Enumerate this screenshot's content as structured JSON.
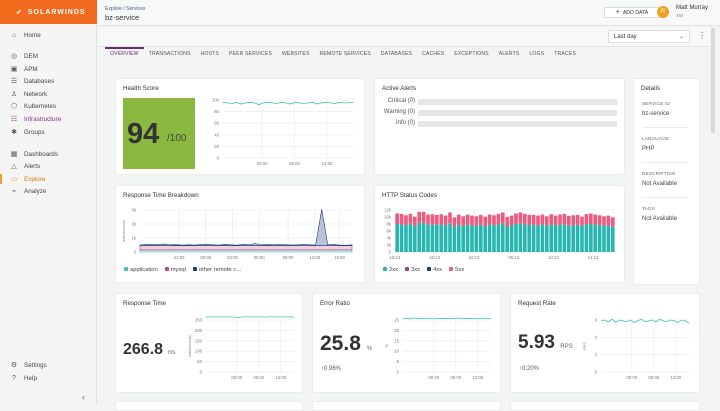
{
  "brand": {
    "name": "SOLARWINDS",
    "color": "#f26a1b"
  },
  "sidebar": {
    "items": [
      {
        "label": "Home",
        "icon": "home-icon"
      },
      {
        "label": "DEM",
        "icon": "dem-icon"
      },
      {
        "label": "APM",
        "icon": "apm-icon"
      },
      {
        "label": "Databases",
        "icon": "database-icon"
      },
      {
        "label": "Network",
        "icon": "network-icon"
      },
      {
        "label": "Kubernetes",
        "icon": "kubernetes-icon"
      },
      {
        "label": "Infrastructure",
        "icon": "infrastructure-icon"
      },
      {
        "label": "Groups",
        "icon": "groups-icon"
      },
      {
        "label": "Dashboards",
        "icon": "dashboards-icon"
      },
      {
        "label": "Alerts",
        "icon": "alerts-icon"
      },
      {
        "label": "Explore",
        "icon": "explore-icon",
        "active": true
      },
      {
        "label": "Analyze",
        "icon": "analyze-icon"
      }
    ],
    "bottom": [
      {
        "label": "Settings",
        "icon": "gear-icon"
      },
      {
        "label": "Help",
        "icon": "help-icon"
      }
    ]
  },
  "header": {
    "breadcrumb": [
      "Explore",
      "Services"
    ],
    "separator": "/",
    "title": "bz-service",
    "add_data": "ADD DATA",
    "user": {
      "name": "Matt Murray",
      "sub": "SW",
      "initial": "R"
    }
  },
  "toolbar": {
    "time_range": "Last day"
  },
  "tabs": [
    "OVERVIEW",
    "TRANSACTIONS",
    "HOSTS",
    "PEER SERVICES",
    "WEBSITES",
    "REMOTE SERVICES",
    "DATABASES",
    "CACHES",
    "EXCEPTIONS",
    "ALERTS",
    "LOGS",
    "TRACES"
  ],
  "health": {
    "title": "Health Score",
    "score": "94",
    "max": "/100",
    "color": "#8bb93f"
  },
  "alerts": {
    "title": "Active Alerts",
    "rows": [
      "Critical (0)",
      "Warning (0)",
      "Info (0)"
    ]
  },
  "details": {
    "title": "Details",
    "fields": [
      {
        "label": "SERVICE ID",
        "value": "bz-service"
      },
      {
        "label": "LANGUAGE",
        "value": "PHP"
      },
      {
        "label": "DESCRIPTION",
        "value": "Not Available"
      },
      {
        "label": "TAGS",
        "value": "Not Available"
      }
    ]
  },
  "kpis": {
    "response_time": {
      "title": "Response Time",
      "value": "266.8",
      "unit": "ms"
    },
    "error_ratio": {
      "title": "Error Ratio",
      "value": "25.8",
      "unit": "%",
      "delta": "0.96%"
    },
    "request_rate": {
      "title": "Request Rate",
      "value": "5.93",
      "unit": "RPS",
      "delta": "0.20%"
    }
  },
  "rtb_title": "Response Time Breakdown",
  "http_title": "HTTP Status Codes",
  "chart_data": [
    {
      "id": "health",
      "type": "line",
      "ylim": [
        0,
        100
      ],
      "yticks": [
        "0",
        "20",
        "40",
        "60",
        "80",
        "100"
      ],
      "xticks": [
        "00:00",
        "06:00",
        "12:00"
      ],
      "color": "#3fc1c0",
      "values": [
        96,
        95,
        94,
        96,
        93,
        95,
        96,
        95,
        92,
        95,
        96,
        95,
        94,
        96,
        95,
        93,
        96,
        95,
        94,
        95,
        96,
        93,
        95,
        96,
        95,
        94,
        96,
        95,
        95,
        96
      ]
    },
    {
      "id": "rtb",
      "type": "area",
      "ylabel": "milliseconds",
      "ylim": [
        0,
        3000
      ],
      "yticks": [
        "0",
        "1k",
        "2k",
        "3k"
      ],
      "xticks": [
        "21:00",
        "00:00",
        "03:00",
        "06:00",
        "09:00",
        "12:00",
        "15:00"
      ],
      "series": [
        {
          "name": "application",
          "color": "#3fc1c0",
          "values": [
            150,
            150,
            150,
            150,
            150,
            150,
            150,
            150,
            150,
            150,
            150,
            150,
            150,
            150,
            150,
            150,
            150,
            150,
            150,
            150,
            150,
            150,
            150,
            150,
            150,
            150,
            150,
            150,
            150,
            150,
            150,
            150,
            150,
            150,
            150,
            150
          ]
        },
        {
          "name": "mysql",
          "color": "#c2457f",
          "values": [
            300,
            300,
            310,
            300,
            300,
            300,
            320,
            300,
            300,
            300,
            300,
            300,
            300,
            300,
            310,
            300,
            300,
            300,
            300,
            300,
            300,
            320,
            300,
            300,
            300,
            300,
            300,
            300,
            300,
            300,
            300,
            300,
            300,
            300,
            300,
            300
          ]
        },
        {
          "name": "other remote c...",
          "color": "#1d3a7a",
          "values": [
            50,
            80,
            60,
            70,
            120,
            60,
            50,
            40,
            60,
            50,
            80,
            90,
            60,
            50,
            70,
            60,
            40,
            80,
            60,
            150,
            60,
            50,
            60,
            70,
            60,
            50,
            60,
            80,
            60,
            50,
            2600,
            60,
            80,
            50,
            30,
            60
          ]
        }
      ]
    },
    {
      "id": "http",
      "type": "bar",
      "stacked": true,
      "ylim": [
        0,
        12000
      ],
      "yticks": [
        "0",
        "2k",
        "4k",
        "6k",
        "8k",
        "10k",
        "12k"
      ],
      "xticks": [
        "18:13",
        "22:13",
        "02:13",
        "06:13",
        "10:13",
        "14:13"
      ],
      "series": [
        {
          "name": "2xx",
          "color": "#27b7b0",
          "values": [
            8000,
            7900,
            7600,
            8100,
            7400,
            8300,
            8400,
            7800,
            7900,
            7800,
            7900,
            7600,
            8200,
            7200,
            7900,
            7400,
            7800,
            7600,
            7500,
            7800,
            7400,
            7800,
            7700,
            7900,
            8200,
            7300,
            7600,
            8000,
            8200,
            7900,
            7700,
            7800,
            7600,
            7900,
            7500,
            7900,
            7600,
            7800,
            7900,
            7500,
            7600,
            7800,
            7500,
            7900,
            8000,
            7800,
            7700,
            7500,
            7600,
            7200
          ]
        },
        {
          "name": "3xx",
          "color": "#a2407a",
          "values": [
            0,
            0,
            0,
            0,
            0,
            0,
            0,
            0,
            0,
            0,
            0,
            0,
            0,
            0,
            0,
            0,
            0,
            0,
            0,
            0,
            0,
            0,
            0,
            0,
            0,
            0,
            0,
            0,
            0,
            0,
            0,
            0,
            0,
            0,
            0,
            0,
            0,
            0,
            0,
            0,
            0,
            0,
            0,
            0,
            0,
            0,
            0,
            0,
            0,
            0
          ]
        },
        {
          "name": "4xx",
          "color": "#1d3a7a",
          "values": [
            0,
            0,
            0,
            0,
            0,
            0,
            0,
            0,
            0,
            0,
            0,
            0,
            0,
            0,
            0,
            0,
            0,
            0,
            0,
            0,
            0,
            0,
            0,
            0,
            0,
            0,
            0,
            0,
            0,
            0,
            0,
            0,
            0,
            0,
            0,
            0,
            0,
            0,
            0,
            0,
            0,
            0,
            0,
            0,
            0,
            0,
            0,
            0,
            0,
            0
          ]
        },
        {
          "name": "5xx",
          "color": "#ef5a7f",
          "values": [
            3000,
            3000,
            2900,
            2800,
            2700,
            3200,
            3100,
            2900,
            2900,
            2800,
            2900,
            2800,
            3100,
            2700,
            2800,
            2800,
            2900,
            2800,
            2700,
            2800,
            2700,
            2900,
            2800,
            3000,
            3100,
            2700,
            2800,
            3000,
            3100,
            3000,
            2900,
            2800,
            2800,
            2800,
            2700,
            2900,
            2800,
            2900,
            3000,
            2800,
            2900,
            2800,
            2600,
            2900,
            3000,
            2900,
            2800,
            2700,
            2800,
            2700
          ]
        }
      ]
    },
    {
      "id": "rt",
      "type": "line",
      "ylabel": "milliseconds",
      "ylim": [
        0,
        250
      ],
      "yticks": [
        "0",
        "50",
        "100",
        "150",
        "200",
        "250"
      ],
      "xticks": [
        "00:00",
        "06:00",
        "12:00"
      ],
      "color": "#3fc1c0",
      "values": [
        265,
        266,
        268,
        267,
        270,
        266,
        268,
        267,
        264,
        262,
        266,
        268,
        265,
        267,
        266,
        270,
        264,
        266,
        268,
        267,
        266,
        265,
        267,
        266,
        264
      ]
    },
    {
      "id": "er",
      "type": "line",
      "ylabel": "%",
      "ylim": [
        0,
        25
      ],
      "yticks": [
        "0",
        "5",
        "10",
        "15",
        "20",
        "25"
      ],
      "xticks": [
        "00:00",
        "06:00",
        "12:00"
      ],
      "color": "#3fc1c0",
      "values": [
        25.6,
        25.8,
        25.5,
        26,
        25.7,
        25.9,
        25.6,
        25.8,
        25.5,
        25.9,
        25.7,
        25.8,
        25.6,
        25.9,
        25.7,
        26,
        25.6,
        25.8,
        25.7,
        25.9,
        25.5,
        25.8,
        25.9,
        25.6,
        25.7
      ]
    },
    {
      "id": "rr",
      "type": "line",
      "ylabel": "RPS",
      "ylim": [
        0,
        6
      ],
      "yticks": [
        "0",
        "2",
        "4",
        "6"
      ],
      "xticks": [
        "00:00",
        "06:00",
        "12:00"
      ],
      "color": "#3fc1c0",
      "values": [
        5.9,
        6.0,
        5.8,
        6.1,
        5.7,
        6.0,
        5.9,
        5.8,
        6.0,
        5.7,
        5.9,
        6.1,
        5.8,
        5.9,
        6.0,
        5.8,
        6.1,
        5.9,
        5.8,
        6.0,
        5.9,
        5.7,
        6.0,
        5.9,
        5.6
      ]
    }
  ]
}
